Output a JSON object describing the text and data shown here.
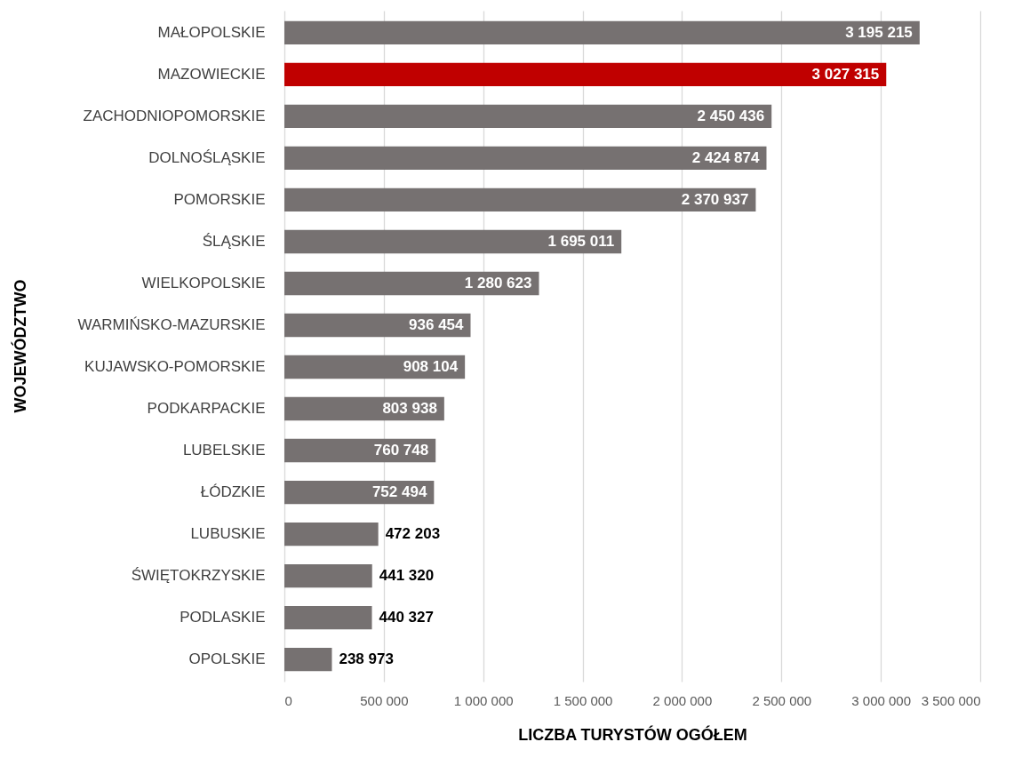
{
  "chart_data": {
    "type": "bar",
    "orientation": "horizontal",
    "xlabel": "LICZBA TURYSTÓW OGÓŁEM",
    "ylabel": "WOJEWÓDZTWO",
    "categories": [
      "MAŁOPOLSKIE",
      "MAZOWIECKIE",
      "ZACHODNIOPOMORSKIE",
      "DOLNOŚLĄSKIE",
      "POMORSKIE",
      "ŚLĄSKIE",
      "WIELKOPOLSKIE",
      "WARMIŃSKO-MAZURSKIE",
      "KUJAWSKO-POMORSKIE",
      "PODKARPACKIE",
      "LUBELSKIE",
      "ŁÓDZKIE",
      "LUBUSKIE",
      "ŚWIĘTOKRZYSKIE",
      "PODLASKIE",
      "OPOLSKIE"
    ],
    "values": [
      3195215,
      3027315,
      2450436,
      2424874,
      2370937,
      1695011,
      1280623,
      936454,
      908104,
      803938,
      760748,
      752494,
      472203,
      441320,
      440327,
      238973
    ],
    "value_labels": [
      "3 195 215",
      "3 027 315",
      "2 450 436",
      "2 424 874",
      "2 370 937",
      "1 695 011",
      "1 280 623",
      "936 454",
      "908 104",
      "803 938",
      "760 748",
      "752 494",
      "472 203",
      "441 320",
      "440 327",
      "238 973"
    ],
    "colors": [
      "#767171",
      "#c00000",
      "#767171",
      "#767171",
      "#767171",
      "#767171",
      "#767171",
      "#767171",
      "#767171",
      "#767171",
      "#767171",
      "#767171",
      "#767171",
      "#767171",
      "#767171",
      "#767171"
    ],
    "xlim": [
      0,
      3500000
    ],
    "xticks": [
      0,
      {
        "value": 500000,
        "label": "500 000"
      },
      {
        "value": 1000000,
        "label": "1 000 000"
      },
      {
        "value": 1500000,
        "label": "1 500 000"
      },
      {
        "value": 2000000,
        "label": "2 000 000"
      },
      {
        "value": 2500000,
        "label": "2 500 000"
      },
      {
        "value": 3000000,
        "label": "3 000 000"
      },
      {
        "value": 3500000,
        "label": "3 500 000"
      }
    ],
    "grid": "x"
  }
}
